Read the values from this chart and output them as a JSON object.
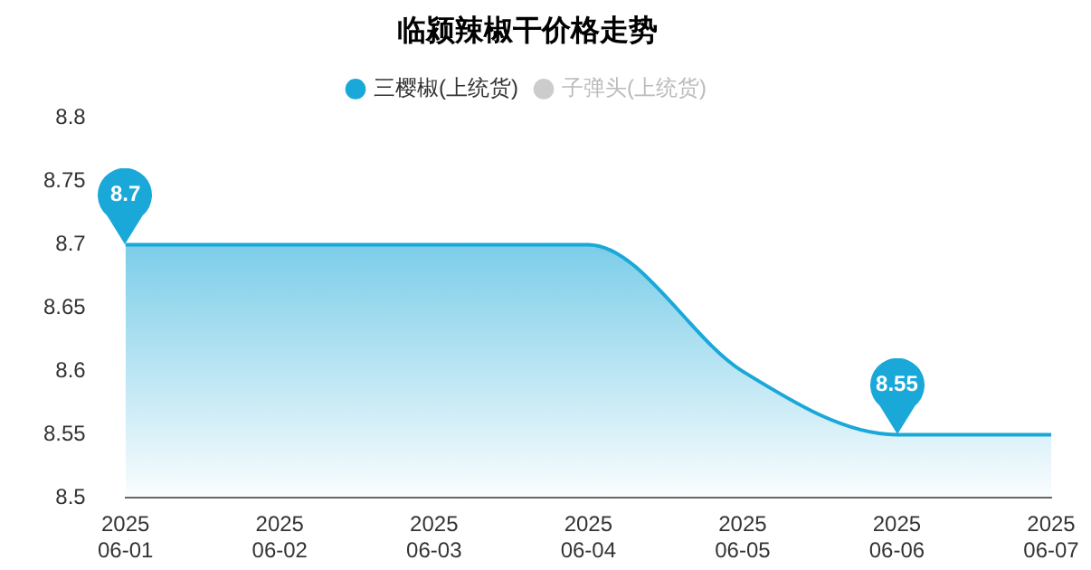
{
  "chart_data": {
    "type": "area",
    "title": "临颍辣椒干价格走势",
    "categories": [
      "2025\n06-01",
      "2025\n06-02",
      "2025\n06-03",
      "2025\n06-04",
      "2025\n06-05",
      "2025\n06-06",
      "2025\n06-07"
    ],
    "series": [
      {
        "name": "三樱椒(上统货)",
        "color": "#1aa8d8",
        "values": [
          8.7,
          8.7,
          8.7,
          8.7,
          8.6,
          8.55,
          8.55
        ]
      },
      {
        "name": "子弹头(上统货)",
        "color": "#cccccc",
        "values": [
          null,
          null,
          null,
          null,
          null,
          null,
          null
        ]
      }
    ],
    "ylim": [
      8.5,
      8.8
    ],
    "yticks": [
      8.5,
      8.55,
      8.6,
      8.65,
      8.7,
      8.75,
      8.8
    ],
    "annotations": [
      {
        "text": "8.7",
        "x": "2025\n06-01",
        "y": 8.7
      },
      {
        "text": "8.55",
        "x": "2025\n06-06",
        "y": 8.55
      }
    ],
    "grid": false,
    "legend": "top",
    "marker": "none"
  }
}
